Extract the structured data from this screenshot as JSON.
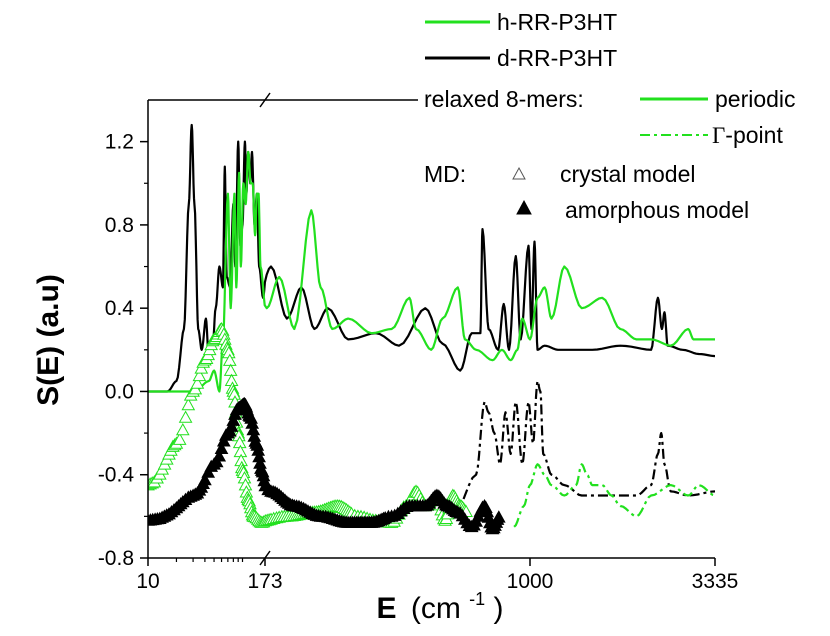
{
  "chart_data": {
    "type": "line",
    "xlabel_main": "E",
    "xlabel_unit_pre": "(cm",
    "xlabel_unit_sup": "-1",
    "xlabel_unit_post": ")",
    "ylabel": "S(E) (a.u)",
    "x_breakpoints": [
      10,
      173,
      1000,
      3335
    ],
    "x_tick_labels": [
      "10",
      "173",
      "1000",
      "3335"
    ],
    "ylim": [
      -0.8,
      1.4
    ],
    "y_ticks": [
      -0.8,
      -0.4,
      0.0,
      0.4,
      0.8,
      1.2
    ],
    "y_tick_labels": [
      "-0.8",
      "-0.4",
      "0.0",
      "0.4",
      "0.8",
      "1.2"
    ],
    "legend": {
      "h_rr_p3ht": "h-RR-P3HT",
      "d_rr_p3ht": "d-RR-P3HT",
      "relaxed_label": "relaxed 8-mers:",
      "periodic": "periodic",
      "gamma_symbol": "Γ",
      "gamma_text": "-point",
      "md_label": "MD:",
      "crystal": "crystal model",
      "amorphous": "amorphous model"
    },
    "colors": {
      "h": "#22e01e",
      "d": "#000000"
    },
    "series": [
      {
        "name": "d-RR-P3HT periodic",
        "color": "#000000",
        "style": "solid",
        "points": [
          [
            10,
            0.0
          ],
          [
            16,
            0.0
          ],
          [
            20,
            0.05
          ],
          [
            24,
            0.3
          ],
          [
            27,
            0.9
          ],
          [
            29,
            1.28
          ],
          [
            31,
            0.9
          ],
          [
            34,
            0.3
          ],
          [
            37,
            0.2
          ],
          [
            41,
            0.35
          ],
          [
            44,
            0.15
          ],
          [
            48,
            0.2
          ],
          [
            52,
            0.4
          ],
          [
            57,
            0.6
          ],
          [
            62,
            0.5
          ],
          [
            65,
            1.08
          ],
          [
            68,
            0.55
          ],
          [
            74,
            0.5
          ],
          [
            80,
            0.9
          ],
          [
            84,
            0.6
          ],
          [
            90,
            1.2
          ],
          [
            95,
            0.7
          ],
          [
            100,
            0.8
          ],
          [
            106,
            1.2
          ],
          [
            110,
            0.95
          ],
          [
            115,
            1.15
          ],
          [
            121,
            1.0
          ],
          [
            126,
            1.15
          ],
          [
            134,
            0.8
          ],
          [
            142,
            0.95
          ],
          [
            150,
            0.6
          ],
          [
            165,
            0.45
          ],
          [
            180,
            0.6
          ],
          [
            200,
            0.35
          ],
          [
            220,
            0.5
          ],
          [
            240,
            0.3
          ],
          [
            262,
            0.4
          ],
          [
            300,
            0.25
          ],
          [
            360,
            0.28
          ],
          [
            420,
            0.22
          ],
          [
            500,
            0.4
          ],
          [
            560,
            0.23
          ],
          [
            630,
            0.1
          ],
          [
            680,
            0.28
          ],
          [
            720,
            0.28
          ],
          [
            730,
            0.78
          ],
          [
            760,
            0.3
          ],
          [
            810,
            0.2
          ],
          [
            840,
            0.42
          ],
          [
            870,
            0.2
          ],
          [
            910,
            0.65
          ],
          [
            940,
            0.25
          ],
          [
            990,
            0.7
          ],
          [
            1010,
            0.3
          ],
          [
            1030,
            0.72
          ],
          [
            1050,
            0.2
          ],
          [
            1100,
            0.22
          ],
          [
            1200,
            0.2
          ],
          [
            1300,
            0.2
          ],
          [
            1500,
            0.2
          ],
          [
            1800,
            0.22
          ],
          [
            2200,
            0.2
          ],
          [
            2300,
            0.45
          ],
          [
            2360,
            0.3
          ],
          [
            2400,
            0.38
          ],
          [
            2450,
            0.22
          ],
          [
            2700,
            0.2
          ],
          [
            3000,
            0.18
          ],
          [
            3335,
            0.17
          ]
        ]
      },
      {
        "name": "h-RR-P3HT periodic",
        "color": "#22e01e",
        "style": "solid",
        "points": [
          [
            10,
            0.0
          ],
          [
            30,
            0.0
          ],
          [
            44,
            0.05
          ],
          [
            50,
            0.1
          ],
          [
            57,
            0.0
          ],
          [
            62,
            0.25
          ],
          [
            70,
            0.95
          ],
          [
            75,
            0.4
          ],
          [
            82,
            0.95
          ],
          [
            86,
            0.5
          ],
          [
            92,
            1.05
          ],
          [
            96,
            0.6
          ],
          [
            102,
            1.0
          ],
          [
            108,
            0.9
          ],
          [
            115,
            1.15
          ],
          [
            122,
            1.0
          ],
          [
            128,
            1.0
          ],
          [
            136,
            0.75
          ],
          [
            142,
            0.95
          ],
          [
            148,
            0.95
          ],
          [
            155,
            0.6
          ],
          [
            175,
            0.4
          ],
          [
            190,
            0.55
          ],
          [
            210,
            0.3
          ],
          [
            235,
            0.87
          ],
          [
            250,
            0.5
          ],
          [
            270,
            0.3
          ],
          [
            300,
            0.35
          ],
          [
            350,
            0.28
          ],
          [
            400,
            0.3
          ],
          [
            450,
            0.45
          ],
          [
            470,
            0.3
          ],
          [
            520,
            0.2
          ],
          [
            560,
            0.35
          ],
          [
            620,
            0.5
          ],
          [
            650,
            0.25
          ],
          [
            700,
            0.2
          ],
          [
            780,
            0.15
          ],
          [
            830,
            0.2
          ],
          [
            880,
            0.15
          ],
          [
            920,
            0.2
          ],
          [
            950,
            0.35
          ],
          [
            1000,
            0.25
          ],
          [
            1050,
            0.45
          ],
          [
            1100,
            0.5
          ],
          [
            1150,
            0.35
          ],
          [
            1250,
            0.6
          ],
          [
            1400,
            0.4
          ],
          [
            1600,
            0.45
          ],
          [
            1800,
            0.3
          ],
          [
            2000,
            0.25
          ],
          [
            2200,
            0.25
          ],
          [
            2500,
            0.22
          ],
          [
            2800,
            0.3
          ],
          [
            2900,
            0.25
          ],
          [
            3100,
            0.25
          ],
          [
            3335,
            0.25
          ]
        ]
      },
      {
        "name": "d-RR-P3HT Γ-point",
        "color": "#000000",
        "style": "dashdot",
        "points": [
          [
            600,
            -0.6
          ],
          [
            700,
            -0.4
          ],
          [
            740,
            -0.05
          ],
          [
            760,
            -0.1
          ],
          [
            790,
            -0.2
          ],
          [
            820,
            -0.35
          ],
          [
            850,
            -0.1
          ],
          [
            880,
            -0.3
          ],
          [
            910,
            -0.05
          ],
          [
            950,
            -0.35
          ],
          [
            990,
            -0.05
          ],
          [
            1020,
            -0.25
          ],
          [
            1050,
            0.05
          ],
          [
            1070,
            0.0
          ],
          [
            1090,
            -0.3
          ],
          [
            1150,
            -0.4
          ],
          [
            1250,
            -0.45
          ],
          [
            1400,
            -0.5
          ],
          [
            1600,
            -0.5
          ],
          [
            1800,
            -0.5
          ],
          [
            2000,
            -0.5
          ],
          [
            2200,
            -0.45
          ],
          [
            2300,
            -0.3
          ],
          [
            2350,
            -0.2
          ],
          [
            2400,
            -0.35
          ],
          [
            2500,
            -0.48
          ],
          [
            2800,
            -0.5
          ],
          [
            3335,
            -0.48
          ]
        ]
      },
      {
        "name": "h-RR-P3HT Γ-point",
        "color": "#22e01e",
        "style": "dashdot",
        "points": [
          [
            900,
            -0.65
          ],
          [
            960,
            -0.55
          ],
          [
            1000,
            -0.45
          ],
          [
            1050,
            -0.35
          ],
          [
            1100,
            -0.4
          ],
          [
            1150,
            -0.45
          ],
          [
            1250,
            -0.5
          ],
          [
            1350,
            -0.45
          ],
          [
            1400,
            -0.35
          ],
          [
            1450,
            -0.4
          ],
          [
            1500,
            -0.45
          ],
          [
            1600,
            -0.45
          ],
          [
            1700,
            -0.5
          ],
          [
            1800,
            -0.55
          ],
          [
            2000,
            -0.6
          ],
          [
            2200,
            -0.5
          ],
          [
            2500,
            -0.45
          ],
          [
            2800,
            -0.5
          ],
          [
            3000,
            -0.45
          ],
          [
            3335,
            -0.5
          ]
        ]
      },
      {
        "name": "h-RR-P3HT MD crystal",
        "color": "#22e01e",
        "style": "markers-open",
        "points": [
          [
            10,
            -0.45
          ],
          [
            20,
            -0.25
          ],
          [
            30,
            0.0
          ],
          [
            40,
            0.15
          ],
          [
            50,
            0.25
          ],
          [
            60,
            0.3
          ],
          [
            70,
            0.2
          ],
          [
            80,
            0.0
          ],
          [
            90,
            -0.2
          ],
          [
            100,
            -0.38
          ],
          [
            115,
            -0.52
          ],
          [
            130,
            -0.6
          ],
          [
            160,
            -0.63
          ],
          [
            200,
            -0.6
          ],
          [
            240,
            -0.58
          ],
          [
            280,
            -0.55
          ],
          [
            320,
            -0.6
          ],
          [
            360,
            -0.62
          ],
          [
            400,
            -0.63
          ],
          [
            440,
            -0.55
          ],
          [
            470,
            -0.48
          ],
          [
            500,
            -0.55
          ],
          [
            540,
            -0.52
          ],
          [
            570,
            -0.62
          ],
          [
            600,
            -0.5
          ],
          [
            630,
            -0.55
          ],
          [
            660,
            -0.58
          ]
        ]
      },
      {
        "name": "d-RR-P3HT MD amorphous",
        "color": "#000000",
        "style": "markers-filled",
        "points": [
          [
            10,
            -0.62
          ],
          [
            30,
            -0.5
          ],
          [
            50,
            -0.35
          ],
          [
            70,
            -0.2
          ],
          [
            90,
            -0.08
          ],
          [
            105,
            -0.06
          ],
          [
            120,
            -0.12
          ],
          [
            140,
            -0.25
          ],
          [
            160,
            -0.38
          ],
          [
            180,
            -0.48
          ],
          [
            210,
            -0.55
          ],
          [
            250,
            -0.6
          ],
          [
            300,
            -0.63
          ],
          [
            350,
            -0.63
          ],
          [
            400,
            -0.6
          ],
          [
            450,
            -0.55
          ],
          [
            500,
            -0.55
          ],
          [
            540,
            -0.5
          ],
          [
            580,
            -0.55
          ],
          [
            620,
            -0.58
          ],
          [
            680,
            -0.65
          ],
          [
            740,
            -0.55
          ],
          [
            780,
            -0.66
          ],
          [
            820,
            -0.6
          ]
        ]
      }
    ]
  }
}
